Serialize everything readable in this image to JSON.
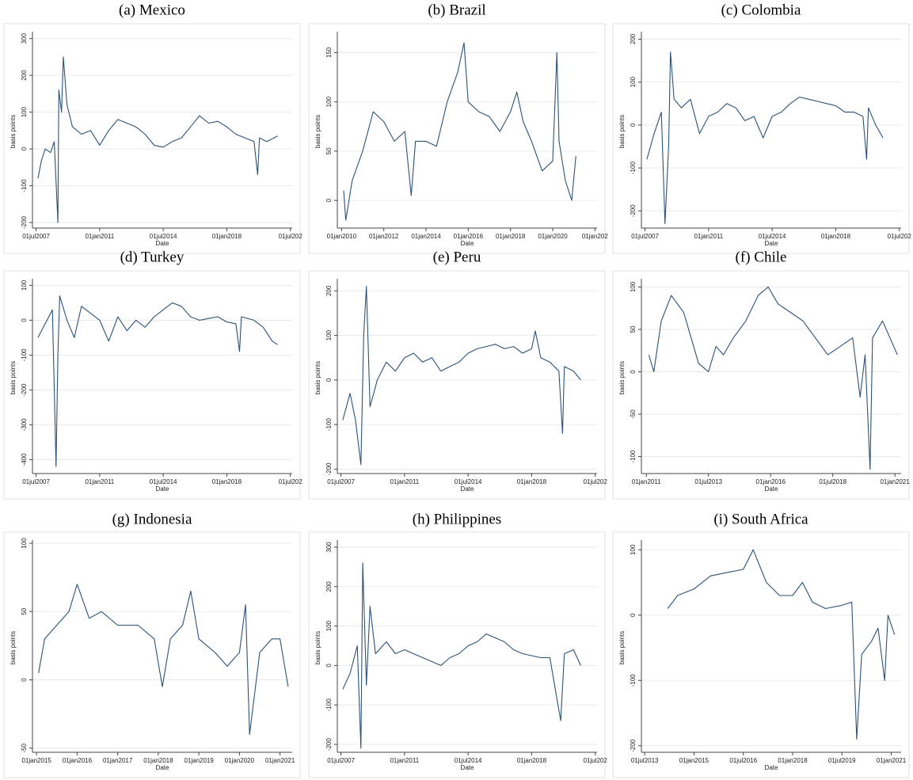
{
  "chart_data": [
    {
      "type": "line",
      "title": "(a) Mexico",
      "y_label": "basis points",
      "x_label": "Date",
      "color": "#2b5279",
      "grid": true,
      "xlim": [
        2007.3,
        2021.6
      ],
      "ylim": [
        -215,
        310
      ],
      "xticks": [
        {
          "value": 2007.5,
          "label": "01jul2007"
        },
        {
          "value": 2011,
          "label": "01jan2011"
        },
        {
          "value": 2014.5,
          "label": "01jul2014"
        },
        {
          "value": 2018,
          "label": "01jan2018"
        },
        {
          "value": 2021.5,
          "label": "01jul202"
        }
      ],
      "yticks": [
        -200,
        -100,
        0,
        100,
        200,
        300
      ],
      "x": [
        2007.6,
        2007.8,
        2008,
        2008.3,
        2008.5,
        2008.7,
        2008.75,
        2008.9,
        2009.0,
        2009.2,
        2009.5,
        2010,
        2010.5,
        2011,
        2011.5,
        2012,
        2012.5,
        2013,
        2013.5,
        2014,
        2014.5,
        2015,
        2015.5,
        2016,
        2016.5,
        2017,
        2017.5,
        2018,
        2018.5,
        2019,
        2019.5,
        2019.7,
        2019.8,
        2020.2,
        2020.6,
        2020.8
      ],
      "values": [
        -80,
        -30,
        0,
        -10,
        20,
        -200,
        160,
        100,
        250,
        120,
        60,
        40,
        50,
        10,
        50,
        80,
        70,
        60,
        40,
        10,
        5,
        20,
        30,
        60,
        90,
        70,
        75,
        60,
        40,
        30,
        20,
        -70,
        30,
        20,
        30,
        35
      ]
    },
    {
      "type": "line",
      "title": "(b) Brazil",
      "y_label": "basis points",
      "x_label": "Date",
      "color": "#2b5279",
      "grid": true,
      "xlim": [
        2009.8,
        2022.1
      ],
      "ylim": [
        -28,
        168
      ],
      "xticks": [
        {
          "value": 2010,
          "label": "01jan2010"
        },
        {
          "value": 2012,
          "label": "01jan2012"
        },
        {
          "value": 2014,
          "label": "01jan2014"
        },
        {
          "value": 2016,
          "label": "01jan2016"
        },
        {
          "value": 2018,
          "label": "01jan2018"
        },
        {
          "value": 2020,
          "label": "01jan2020"
        },
        {
          "value": 2022,
          "label": "01jan202"
        }
      ],
      "yticks": [
        0,
        50,
        100,
        150
      ],
      "x": [
        2010.1,
        2010.2,
        2010.5,
        2011,
        2011.5,
        2012,
        2012.5,
        2013,
        2013.3,
        2013.5,
        2014,
        2014.5,
        2015,
        2015.5,
        2015.8,
        2016,
        2016.5,
        2017,
        2017.5,
        2018,
        2018.3,
        2018.6,
        2019,
        2019.5,
        2020,
        2020.2,
        2020.3,
        2020.6,
        2020.9,
        2021.1
      ],
      "values": [
        10,
        -20,
        20,
        50,
        90,
        80,
        60,
        70,
        5,
        60,
        60,
        55,
        100,
        130,
        160,
        100,
        90,
        85,
        70,
        90,
        110,
        80,
        60,
        30,
        40,
        150,
        60,
        20,
        0,
        45
      ]
    },
    {
      "type": "line",
      "title": "(c) Colombia",
      "y_label": "basis points",
      "x_label": "Date",
      "color": "#2b5279",
      "grid": true,
      "xlim": [
        2007.3,
        2021.6
      ],
      "ylim": [
        -240,
        210
      ],
      "xticks": [
        {
          "value": 2007.5,
          "label": "01jul2007"
        },
        {
          "value": 2011,
          "label": "01jan2011"
        },
        {
          "value": 2014.5,
          "label": "01jul2014"
        },
        {
          "value": 2018,
          "label": "01jan2018"
        },
        {
          "value": 2021.5,
          "label": "01jul202"
        }
      ],
      "yticks": [
        -200,
        -100,
        0,
        100,
        200
      ],
      "x": [
        2007.6,
        2008,
        2008.4,
        2008.6,
        2008.8,
        2008.9,
        2009.1,
        2009.5,
        2010,
        2010.5,
        2011,
        2011.5,
        2012,
        2012.5,
        2013,
        2013.5,
        2014,
        2014.5,
        2015,
        2015.5,
        2016,
        2016.5,
        2017,
        2017.5,
        2018,
        2018.5,
        2019,
        2019.5,
        2019.7,
        2019.8,
        2020.2,
        2020.6
      ],
      "values": [
        -80,
        -20,
        30,
        -230,
        -50,
        170,
        60,
        40,
        60,
        -20,
        20,
        30,
        50,
        40,
        10,
        20,
        -30,
        20,
        30,
        50,
        65,
        60,
        55,
        50,
        45,
        30,
        30,
        20,
        -80,
        40,
        0,
        -30
      ]
    },
    {
      "type": "line",
      "title": "(d) Turkey",
      "y_label": "basis points",
      "x_label": "Date",
      "color": "#2b5279",
      "grid": true,
      "xlim": [
        2007.3,
        2021.6
      ],
      "ylim": [
        -440,
        110
      ],
      "xticks": [
        {
          "value": 2007.5,
          "label": "01jul2007"
        },
        {
          "value": 2011,
          "label": "01jan2011"
        },
        {
          "value": 2014.5,
          "label": "01jul2014"
        },
        {
          "value": 2018,
          "label": "01jan2018"
        },
        {
          "value": 2021.5,
          "label": "01jul202"
        }
      ],
      "yticks": [
        -400,
        -300,
        -200,
        -100,
        0,
        100
      ],
      "x": [
        2007.6,
        2008,
        2008.4,
        2008.6,
        2008.7,
        2008.8,
        2009.2,
        2009.6,
        2010,
        2010.5,
        2011,
        2011.5,
        2012,
        2012.5,
        2013,
        2013.5,
        2014,
        2014.5,
        2015,
        2015.5,
        2016,
        2016.5,
        2017,
        2017.5,
        2018,
        2018.5,
        2018.7,
        2018.8,
        2019.5,
        2020,
        2020.5,
        2020.8
      ],
      "values": [
        -50,
        -10,
        30,
        -420,
        -100,
        70,
        0,
        -50,
        40,
        20,
        0,
        -60,
        10,
        -30,
        0,
        -20,
        10,
        30,
        50,
        40,
        10,
        0,
        5,
        10,
        -5,
        -10,
        -90,
        10,
        0,
        -20,
        -60,
        -70
      ]
    },
    {
      "type": "line",
      "title": "(e) Peru",
      "y_label": "basis points",
      "x_label": "Date",
      "color": "#2b5279",
      "grid": true,
      "xlim": [
        2007.3,
        2021.6
      ],
      "ylim": [
        -210,
        220
      ],
      "xticks": [
        {
          "value": 2007.5,
          "label": "01jul2007"
        },
        {
          "value": 2011,
          "label": "01jan2011"
        },
        {
          "value": 2014.5,
          "label": "01jul2014"
        },
        {
          "value": 2018,
          "label": "01jan2018"
        },
        {
          "value": 2021.5,
          "label": "01jul202"
        }
      ],
      "yticks": [
        -200,
        -100,
        0,
        100,
        200
      ],
      "x": [
        2007.6,
        2008,
        2008.3,
        2008.6,
        2008.75,
        2008.9,
        2009.1,
        2009.5,
        2010,
        2010.5,
        2011,
        2011.5,
        2012,
        2012.5,
        2013,
        2013.5,
        2014,
        2014.5,
        2015,
        2015.5,
        2016,
        2016.5,
        2017,
        2017.5,
        2018,
        2018.2,
        2018.5,
        2019,
        2019.5,
        2019.7,
        2019.8,
        2020.3,
        2020.7
      ],
      "values": [
        -90,
        -30,
        -90,
        -190,
        100,
        210,
        -60,
        0,
        40,
        20,
        50,
        60,
        40,
        50,
        20,
        30,
        40,
        60,
        70,
        75,
        80,
        70,
        75,
        60,
        70,
        110,
        50,
        40,
        20,
        -120,
        30,
        20,
        0
      ]
    },
    {
      "type": "line",
      "title": "(f) Chile",
      "y_label": "basis points",
      "x_label": "Date",
      "color": "#2b5279",
      "grid": true,
      "xlim": [
        2010.8,
        2021.25
      ],
      "ylim": [
        -120,
        106
      ],
      "xticks": [
        {
          "value": 2011,
          "label": "01jan2011"
        },
        {
          "value": 2013.5,
          "label": "01jul2013"
        },
        {
          "value": 2016,
          "label": "01jan2016"
        },
        {
          "value": 2018.5,
          "label": "01jul2018"
        },
        {
          "value": 2021,
          "label": "01jan2021"
        }
      ],
      "yticks": [
        -100,
        -50,
        0,
        50,
        100
      ],
      "x": [
        2011.1,
        2011.3,
        2011.6,
        2012,
        2012.5,
        2012.8,
        2013.1,
        2013.5,
        2013.8,
        2014.1,
        2014.5,
        2015,
        2015.5,
        2015.9,
        2016.3,
        2016.8,
        2017.3,
        2017.8,
        2018.3,
        2018.8,
        2019.3,
        2019.6,
        2019.8,
        2020,
        2020.1,
        2020.5,
        2020.8,
        2021.1
      ],
      "values": [
        20,
        0,
        60,
        90,
        70,
        40,
        10,
        0,
        30,
        20,
        40,
        60,
        90,
        100,
        80,
        70,
        60,
        40,
        20,
        30,
        40,
        -30,
        20,
        -115,
        40,
        60,
        40,
        20
      ]
    },
    {
      "type": "line",
      "title": "(g) Indonesia",
      "y_label": "basis points",
      "x_label": "Date",
      "color": "#2b5279",
      "grid": true,
      "xlim": [
        2014.9,
        2021.3
      ],
      "ylim": [
        -53,
        100
      ],
      "xticks": [
        {
          "value": 2015,
          "label": "01jan2015"
        },
        {
          "value": 2016,
          "label": "01jan2016"
        },
        {
          "value": 2017,
          "label": "01jan2017"
        },
        {
          "value": 2018,
          "label": "01jan2018"
        },
        {
          "value": 2019,
          "label": "01jan2019"
        },
        {
          "value": 2020,
          "label": "01jan2020"
        },
        {
          "value": 2021,
          "label": "01jan2021"
        }
      ],
      "yticks": [
        -50,
        0,
        50,
        100
      ],
      "x": [
        2015.05,
        2015.2,
        2015.5,
        2015.8,
        2016,
        2016.3,
        2016.6,
        2017,
        2017.5,
        2017.9,
        2018.1,
        2018.3,
        2018.6,
        2018.8,
        2019,
        2019.4,
        2019.7,
        2020,
        2020.15,
        2020.25,
        2020.5,
        2020.8,
        2021,
        2021.2
      ],
      "values": [
        5,
        30,
        40,
        50,
        70,
        45,
        50,
        40,
        40,
        30,
        -5,
        30,
        40,
        65,
        30,
        20,
        10,
        20,
        55,
        -40,
        20,
        30,
        30,
        -5
      ]
    },
    {
      "type": "line",
      "title": "(h) Philippines",
      "y_label": "basis points",
      "x_label": "Date",
      "color": "#2b5279",
      "grid": true,
      "xlim": [
        2007.3,
        2021.6
      ],
      "ylim": [
        -220,
        310
      ],
      "xticks": [
        {
          "value": 2007.5,
          "label": "01jul2007"
        },
        {
          "value": 2011,
          "label": "01jan2011"
        },
        {
          "value": 2014.5,
          "label": "01jul2014"
        },
        {
          "value": 2018,
          "label": "01jan2018"
        },
        {
          "value": 2021.5,
          "label": "01jul202"
        }
      ],
      "yticks": [
        -200,
        -100,
        0,
        100,
        200,
        300
      ],
      "x": [
        2007.6,
        2008,
        2008.4,
        2008.6,
        2008.7,
        2008.9,
        2009.1,
        2009.4,
        2010,
        2010.5,
        2011,
        2011.5,
        2012,
        2012.5,
        2013,
        2013.5,
        2014,
        2014.5,
        2015,
        2015.5,
        2016,
        2016.5,
        2017,
        2017.5,
        2018,
        2018.5,
        2019,
        2019.6,
        2019.8,
        2020.3,
        2020.7
      ],
      "values": [
        -60,
        -20,
        50,
        -210,
        260,
        -50,
        150,
        30,
        60,
        30,
        40,
        30,
        20,
        10,
        0,
        20,
        30,
        50,
        60,
        80,
        70,
        60,
        40,
        30,
        25,
        20,
        20,
        -140,
        30,
        40,
        0
      ]
    },
    {
      "type": "line",
      "title": "(i) South Africa",
      "y_label": "basis points",
      "x_label": "Date",
      "color": "#2b5279",
      "grid": true,
      "xlim": [
        2013.4,
        2021.3
      ],
      "ylim": [
        -210,
        110
      ],
      "xticks": [
        {
          "value": 2013.5,
          "label": "01jul2013"
        },
        {
          "value": 2015,
          "label": "01jan2015"
        },
        {
          "value": 2016.5,
          "label": "01jul2016"
        },
        {
          "value": 2018,
          "label": "01jan2018"
        },
        {
          "value": 2019.5,
          "label": "01jul2019"
        },
        {
          "value": 2021,
          "label": "01jan2021"
        }
      ],
      "yticks": [
        -200,
        -100,
        0,
        100
      ],
      "x": [
        2014.2,
        2014.5,
        2015,
        2015.5,
        2016,
        2016.5,
        2016.8,
        2017.2,
        2017.6,
        2018,
        2018.3,
        2018.6,
        2019,
        2019.5,
        2019.8,
        2019.95,
        2020.1,
        2020.4,
        2020.6,
        2020.8,
        2020.9,
        2021.1
      ],
      "values": [
        10,
        30,
        40,
        60,
        65,
        70,
        100,
        50,
        30,
        30,
        50,
        20,
        10,
        15,
        20,
        -190,
        -60,
        -40,
        -20,
        -100,
        0,
        -30
      ]
    }
  ]
}
